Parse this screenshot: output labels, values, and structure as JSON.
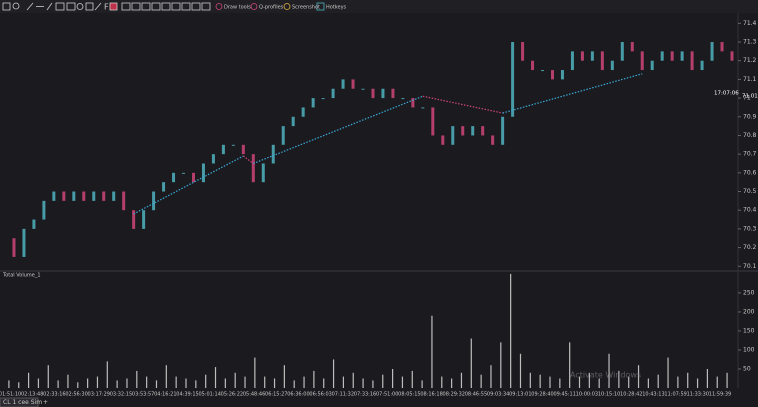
{
  "toolbar": {
    "buttons": [
      "Draw tools",
      "Q-profiles",
      "Screenshot",
      "Hotkeys"
    ]
  },
  "chart_data": [
    {
      "type": "candles",
      "instrument_tab": "CL 1 cee Sim",
      "last_price_label": "71.01",
      "clock_label": "17:07:06",
      "ylim": [
        70.08,
        71.45
      ],
      "yticks": [
        70.1,
        70.2,
        70.3,
        70.4,
        70.5,
        70.6,
        70.7,
        70.8,
        70.9,
        {
          "value": 71.0,
          "label": "71"
        },
        71.1,
        71.2,
        71.3,
        71.4
      ],
      "up_color": "#4fb3bf",
      "down_color": "#d0457a",
      "values": [
        70.25,
        70.15,
        70.3,
        70.35,
        70.45,
        70.5,
        70.45,
        70.5,
        70.45,
        70.5,
        70.45,
        70.5,
        70.4,
        70.3,
        70.4,
        70.5,
        70.55,
        70.6,
        70.6,
        70.55,
        70.65,
        70.7,
        70.75,
        70.75,
        70.7,
        70.55,
        70.65,
        70.75,
        70.85,
        70.9,
        70.95,
        71.0,
        71.0,
        71.05,
        71.1,
        71.05,
        71.05,
        71.0,
        71.05,
        71.0,
        71.0,
        70.95,
        70.95,
        70.8,
        70.75,
        70.85,
        70.8,
        70.85,
        70.8,
        70.75,
        70.9,
        71.3,
        71.2,
        71.15,
        71.15,
        71.1,
        71.15,
        71.25,
        71.2,
        71.25,
        71.15,
        71.2,
        71.3,
        71.25,
        71.15,
        71.2,
        71.25,
        71.2,
        71.25,
        71.15,
        71.2,
        71.3,
        71.25,
        71.2
      ],
      "zigzag": {
        "colors": [
          "#3aa8d8",
          "#d0457a"
        ],
        "values": [
          null,
          null,
          null,
          null,
          null,
          null,
          null,
          null,
          null,
          null,
          null,
          null,
          null,
          70.38,
          null,
          null,
          null,
          null,
          null,
          null,
          null,
          null,
          null,
          null,
          70.69,
          70.65,
          null,
          null,
          null,
          null,
          null,
          null,
          null,
          null,
          null,
          null,
          null,
          null,
          null,
          null,
          null,
          null,
          71.01,
          null,
          null,
          null,
          null,
          null,
          null,
          null,
          70.92,
          null,
          null,
          null,
          null,
          null,
          null,
          null,
          null,
          null,
          null,
          null,
          null,
          null,
          71.13,
          null,
          null,
          null,
          null,
          null,
          null,
          null,
          null,
          null
        ]
      }
    },
    {
      "type": "volume",
      "title": "Total Volume_1",
      "color": "#bdbdbd",
      "ylim": [
        0,
        305
      ],
      "yticks": [
        50,
        100,
        150,
        200,
        250
      ],
      "values": [
        20,
        15,
        40,
        25,
        60,
        20,
        35,
        15,
        25,
        30,
        70,
        20,
        25,
        45,
        30,
        20,
        60,
        30,
        25,
        20,
        35,
        55,
        25,
        40,
        30,
        80,
        30,
        25,
        60,
        20,
        30,
        45,
        25,
        75,
        30,
        40,
        25,
        20,
        35,
        50,
        30,
        45,
        20,
        190,
        30,
        25,
        40,
        130,
        35,
        60,
        120,
        300,
        90,
        40,
        35,
        30,
        25,
        120,
        30,
        40,
        25,
        90,
        45,
        30,
        60,
        25,
        35,
        80,
        30,
        40,
        25,
        50,
        30,
        40
      ],
      "x_labels": [
        "01:51:10",
        "02:13:48",
        "02:33:16",
        "02:56:30",
        "03:17:29",
        "03:32:15",
        "03:53:57",
        "04:16:21",
        "04:39:15",
        "05:01:14",
        "05:26:22",
        "05:48:46",
        "06:15:27",
        "06:36:00",
        "06:56:03",
        "07:11:32",
        "07:33:16",
        "07:51:00",
        "08:05:15",
        "08:16:18",
        "08:29:32",
        "08:46:55",
        "09:03:34",
        "09:13:01",
        "09:28:40",
        "09:45:11",
        "10:00:03",
        "10:15:10",
        "10:28:42",
        "10:43:13",
        "11:07:59",
        "11:33:30",
        "11:59:39"
      ],
      "watermark": "Activate Windows"
    }
  ]
}
